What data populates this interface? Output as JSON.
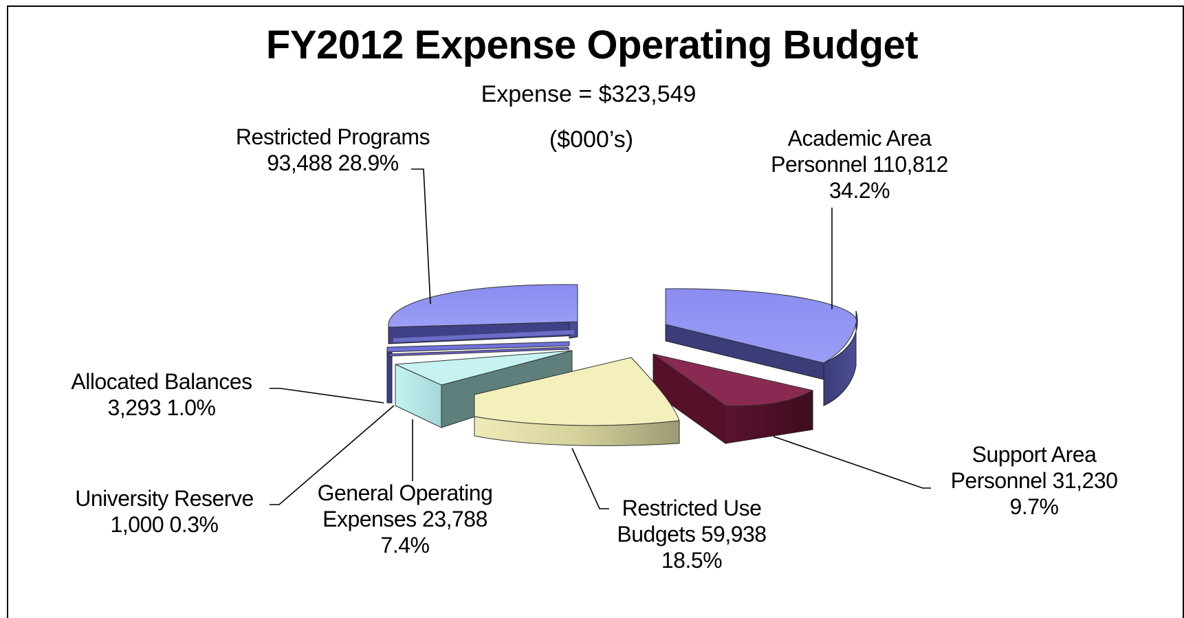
{
  "chart_data": {
    "type": "pie",
    "title": "FY2012 Expense Operating Budget",
    "subtitle": "Expense = $323,549",
    "units": "($000’s)",
    "slices": [
      {
        "label": "Academic Area Personnel",
        "value": 110812,
        "percent": "34.2%",
        "value_text": "110,812",
        "color": "#8c8ff0"
      },
      {
        "label": "Support Area Personnel",
        "value": 31230,
        "percent": "9.7%",
        "value_text": "31,230",
        "color": "#8a2a52"
      },
      {
        "label": "Restricted Use Budgets",
        "value": 59938,
        "percent": "18.5%",
        "value_text": "59,938",
        "color": "#f3f0bc"
      },
      {
        "label": "General Operating Expenses",
        "value": 23788,
        "percent": "7.4%",
        "value_text": "23,788",
        "color": "#c6f2f2"
      },
      {
        "label": "University Reserve",
        "value": 1000,
        "percent": "0.3%",
        "value_text": "1,000",
        "color": "#6c62c8"
      },
      {
        "label": "Allocated Balances",
        "value": 3293,
        "percent": "1.0%",
        "value_text": "3,293",
        "color": "#6f70d8"
      },
      {
        "label": "Restricted Programs",
        "value": 93488,
        "percent": "28.9%",
        "value_text": "93,488",
        "color": "#8c8ff0"
      }
    ]
  },
  "labels": {
    "academic": {
      "l1": "Academic Area",
      "l2": "Personnel  110,812",
      "l3": "34.2%"
    },
    "support": {
      "l1": "Support Area",
      "l2": "Personnel  31,230",
      "l3": "9.7%"
    },
    "restricted_use": {
      "l1": "Restricted Use",
      "l2": "Budgets  59,938",
      "l3": "18.5%"
    },
    "general": {
      "l1": "General Operating",
      "l2": "Expenses  23,788",
      "l3": "7.4%"
    },
    "reserve": {
      "l1": "University Reserve",
      "l2": "1,000  0.3%"
    },
    "allocated": {
      "l1": "Allocated Balances",
      "l2": "3,293  1.0%"
    },
    "restricted_programs": {
      "l1": "Restricted Programs",
      "l2": "93,488  28.9%"
    }
  }
}
